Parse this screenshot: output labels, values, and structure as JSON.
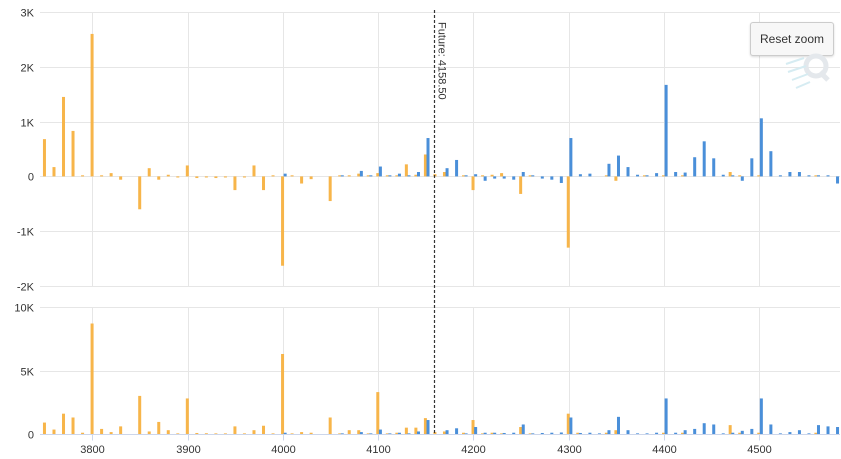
{
  "toolbar": {
    "reset_zoom_label": "Reset zoom"
  },
  "marker": {
    "label": "Future: 4158.50",
    "value": 4158.5
  },
  "colors": {
    "call": "#f7b54a",
    "put": "#4a8fd9",
    "grid": "#e6e6e6",
    "marker": "#333333"
  },
  "icons": {
    "watermark": "q-logo-icon"
  },
  "chart_data": [
    {
      "type": "bar",
      "panel": "top",
      "xlim": [
        3745,
        4585
      ],
      "ylim": [
        -2000,
        3000
      ],
      "y_ticks": [
        -2000,
        -1000,
        0,
        1000,
        2000,
        3000
      ],
      "y_tick_labels": [
        "-2K",
        "-1K",
        "0",
        "1K",
        "2K",
        "3K"
      ],
      "grid": true,
      "series": [
        {
          "color": "orange",
          "points": [
            [
              3750,
              680
            ],
            [
              3760,
              170
            ],
            [
              3770,
              1450
            ],
            [
              3780,
              830
            ],
            [
              3790,
              20
            ],
            [
              3800,
              2600
            ],
            [
              3810,
              20
            ],
            [
              3820,
              60
            ],
            [
              3830,
              -60
            ],
            [
              3850,
              -600
            ],
            [
              3860,
              150
            ],
            [
              3870,
              -60
            ],
            [
              3880,
              30
            ],
            [
              3890,
              -20
            ],
            [
              3900,
              200
            ],
            [
              3910,
              -30
            ],
            [
              3920,
              -20
            ],
            [
              3930,
              -30
            ],
            [
              3940,
              -20
            ],
            [
              3950,
              -250
            ],
            [
              3960,
              -20
            ],
            [
              3970,
              200
            ],
            [
              3980,
              -250
            ],
            [
              3990,
              20
            ],
            [
              4000,
              -1630
            ],
            [
              4010,
              20
            ],
            [
              4020,
              -130
            ],
            [
              4030,
              -50
            ],
            [
              4050,
              -450
            ],
            [
              4060,
              20
            ],
            [
              4070,
              20
            ],
            [
              4080,
              50
            ],
            [
              4090,
              20
            ],
            [
              4100,
              60
            ],
            [
              4110,
              20
            ],
            [
              4120,
              20
            ],
            [
              4130,
              220
            ],
            [
              4140,
              30
            ],
            [
              4150,
              400
            ],
            [
              4160,
              40
            ],
            [
              4170,
              80
            ],
            [
              4190,
              20
            ],
            [
              4200,
              -250
            ],
            [
              4210,
              20
            ],
            [
              4220,
              30
            ],
            [
              4230,
              60
            ],
            [
              4250,
              -320
            ],
            [
              4260,
              20
            ],
            [
              4300,
              -1300
            ],
            [
              4340,
              20
            ],
            [
              4350,
              -80
            ],
            [
              4380,
              20
            ],
            [
              4400,
              20
            ],
            [
              4420,
              20
            ],
            [
              4470,
              80
            ],
            [
              4480,
              20
            ],
            [
              4500,
              20
            ],
            [
              4560,
              20
            ]
          ]
        },
        {
          "color": "blue",
          "points": [
            [
              4000,
              50
            ],
            [
              4060,
              20
            ],
            [
              4080,
              100
            ],
            [
              4090,
              20
            ],
            [
              4100,
              180
            ],
            [
              4110,
              20
            ],
            [
              4120,
              50
            ],
            [
              4130,
              20
            ],
            [
              4140,
              80
            ],
            [
              4150,
              700
            ],
            [
              4170,
              150
            ],
            [
              4180,
              300
            ],
            [
              4190,
              20
            ],
            [
              4200,
              40
            ],
            [
              4210,
              -80
            ],
            [
              4220,
              -40
            ],
            [
              4230,
              -40
            ],
            [
              4240,
              -60
            ],
            [
              4250,
              80
            ],
            [
              4260,
              20
            ],
            [
              4270,
              -40
            ],
            [
              4280,
              -60
            ],
            [
              4290,
              -120
            ],
            [
              4300,
              700
            ],
            [
              4310,
              40
            ],
            [
              4320,
              50
            ],
            [
              4340,
              230
            ],
            [
              4350,
              380
            ],
            [
              4360,
              170
            ],
            [
              4370,
              30
            ],
            [
              4380,
              20
            ],
            [
              4390,
              60
            ],
            [
              4400,
              1670
            ],
            [
              4410,
              80
            ],
            [
              4420,
              70
            ],
            [
              4430,
              350
            ],
            [
              4440,
              640
            ],
            [
              4450,
              330
            ],
            [
              4460,
              30
            ],
            [
              4470,
              20
            ],
            [
              4480,
              -80
            ],
            [
              4490,
              330
            ],
            [
              4500,
              1060
            ],
            [
              4510,
              460
            ],
            [
              4520,
              20
            ],
            [
              4530,
              80
            ],
            [
              4540,
              80
            ],
            [
              4550,
              20
            ],
            [
              4560,
              20
            ],
            [
              4570,
              20
            ],
            [
              4580,
              -130
            ]
          ]
        }
      ]
    },
    {
      "type": "bar",
      "panel": "bottom",
      "xlim": [
        3745,
        4585
      ],
      "ylim": [
        0,
        10000
      ],
      "y_ticks": [
        0,
        5000,
        10000
      ],
      "y_tick_labels": [
        "0",
        "5K",
        "10K"
      ],
      "x_ticks": [
        3800,
        3900,
        4000,
        4100,
        4200,
        4300,
        4400,
        4500
      ],
      "x_tick_labels": [
        "3800",
        "3900",
        "4000",
        "4100",
        "4200",
        "4300",
        "4400",
        "4500"
      ],
      "grid": true,
      "series": [
        {
          "color": "orange",
          "points": [
            [
              3750,
              900
            ],
            [
              3760,
              350
            ],
            [
              3770,
              1600
            ],
            [
              3780,
              1300
            ],
            [
              3790,
              100
            ],
            [
              3800,
              8700
            ],
            [
              3810,
              400
            ],
            [
              3820,
              150
            ],
            [
              3830,
              600
            ],
            [
              3850,
              3000
            ],
            [
              3860,
              200
            ],
            [
              3870,
              950
            ],
            [
              3880,
              300
            ],
            [
              3890,
              50
            ],
            [
              3900,
              2800
            ],
            [
              3910,
              80
            ],
            [
              3920,
              60
            ],
            [
              3930,
              50
            ],
            [
              3940,
              50
            ],
            [
              3950,
              600
            ],
            [
              3960,
              50
            ],
            [
              3970,
              300
            ],
            [
              3980,
              650
            ],
            [
              3990,
              50
            ],
            [
              4000,
              6300
            ],
            [
              4010,
              50
            ],
            [
              4020,
              150
            ],
            [
              4030,
              100
            ],
            [
              4050,
              1300
            ],
            [
              4060,
              50
            ],
            [
              4070,
              300
            ],
            [
              4080,
              300
            ],
            [
              4090,
              50
            ],
            [
              4100,
              3300
            ],
            [
              4110,
              50
            ],
            [
              4120,
              100
            ],
            [
              4130,
              500
            ],
            [
              4140,
              500
            ],
            [
              4150,
              1250
            ],
            [
              4160,
              150
            ],
            [
              4170,
              200
            ],
            [
              4190,
              100
            ],
            [
              4200,
              1100
            ],
            [
              4210,
              50
            ],
            [
              4220,
              100
            ],
            [
              4230,
              50
            ],
            [
              4250,
              550
            ],
            [
              4260,
              50
            ],
            [
              4300,
              1600
            ],
            [
              4310,
              100
            ],
            [
              4340,
              100
            ],
            [
              4350,
              300
            ],
            [
              4400,
              100
            ],
            [
              4420,
              100
            ],
            [
              4470,
              700
            ],
            [
              4480,
              100
            ],
            [
              4500,
              100
            ],
            [
              4560,
              100
            ]
          ]
        },
        {
          "color": "blue",
          "points": [
            [
              4000,
              100
            ],
            [
              4060,
              50
            ],
            [
              4080,
              150
            ],
            [
              4090,
              50
            ],
            [
              4100,
              350
            ],
            [
              4110,
              50
            ],
            [
              4120,
              100
            ],
            [
              4130,
              50
            ],
            [
              4140,
              200
            ],
            [
              4150,
              1100
            ],
            [
              4170,
              300
            ],
            [
              4180,
              450
            ],
            [
              4190,
              50
            ],
            [
              4200,
              550
            ],
            [
              4210,
              100
            ],
            [
              4220,
              100
            ],
            [
              4230,
              80
            ],
            [
              4240,
              100
            ],
            [
              4250,
              750
            ],
            [
              4260,
              50
            ],
            [
              4270,
              80
            ],
            [
              4280,
              100
            ],
            [
              4290,
              120
            ],
            [
              4300,
              1300
            ],
            [
              4310,
              80
            ],
            [
              4320,
              100
            ],
            [
              4330,
              50
            ],
            [
              4340,
              300
            ],
            [
              4350,
              1350
            ],
            [
              4360,
              300
            ],
            [
              4370,
              50
            ],
            [
              4380,
              50
            ],
            [
              4390,
              100
            ],
            [
              4400,
              2800
            ],
            [
              4410,
              100
            ],
            [
              4420,
              300
            ],
            [
              4430,
              400
            ],
            [
              4440,
              850
            ],
            [
              4450,
              750
            ],
            [
              4460,
              50
            ],
            [
              4470,
              100
            ],
            [
              4480,
              250
            ],
            [
              4490,
              400
            ],
            [
              4500,
              2800
            ],
            [
              4510,
              750
            ],
            [
              4520,
              50
            ],
            [
              4530,
              150
            ],
            [
              4540,
              300
            ],
            [
              4550,
              50
            ],
            [
              4560,
              700
            ],
            [
              4570,
              600
            ],
            [
              4580,
              550
            ]
          ]
        }
      ]
    }
  ]
}
